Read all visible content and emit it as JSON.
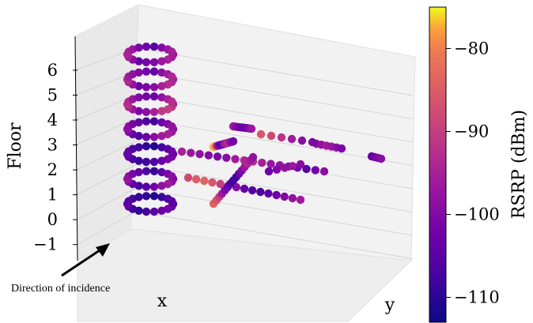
{
  "chart_data": {
    "type": "scatter",
    "projection": "3d",
    "zlabel": "Floor",
    "xlabel": "x",
    "ylabel": "y",
    "z_ticks": [
      "−1",
      "0",
      "1",
      "2",
      "3",
      "4",
      "5",
      "6"
    ],
    "z_tick_values": [
      -1,
      0,
      1,
      2,
      3,
      4,
      5,
      6
    ],
    "zlim": [
      -1.2,
      6.6
    ],
    "grid": true,
    "annotation": "Direction of incidence",
    "colorbar": {
      "label": "RSRP (dBm)",
      "colormap": "plasma",
      "range": [
        -113,
        -75
      ],
      "ticks": [
        "−80",
        "−90",
        "−100",
        "−110"
      ],
      "tick_values": [
        -80,
        -90,
        -100,
        -110
      ]
    },
    "series": [
      {
        "description": "vertical stack of ring-shaped measurement paths",
        "rings": [
          {
            "floor": 6,
            "values": [
              -98,
              -96,
              -95,
              -97,
              -100,
              -102,
              -104,
              -99,
              -96,
              -94,
              -95,
              -97,
              -101,
              -103,
              -105,
              -100,
              -97,
              -95
            ]
          },
          {
            "floor": 5,
            "values": [
              -97,
              -94,
              -93,
              -95,
              -99,
              -101,
              -103,
              -98,
              -95,
              -93,
              -96,
              -98,
              -100,
              -102,
              -104,
              -99,
              -96,
              -94
            ]
          },
          {
            "floor": 4,
            "values": [
              -96,
              -92,
              -90,
              -91,
              -95,
              -99,
              -101,
              -97,
              -94,
              -92,
              -93,
              -97,
              -100,
              -102,
              -103,
              -98,
              -95,
              -93
            ]
          },
          {
            "floor": 3,
            "values": [
              -100,
              -97,
              -95,
              -96,
              -99,
              -103,
              -106,
              -104,
              -100,
              -98,
              -99,
              -101,
              -104,
              -106,
              -108,
              -103,
              -100,
              -98
            ]
          },
          {
            "floor": 2,
            "values": [
              -104,
              -102,
              -101,
              -103,
              -106,
              -108,
              -109,
              -107,
              -105,
              -103,
              -104,
              -106,
              -108,
              -110,
              -111,
              -108,
              -105,
              -103
            ]
          },
          {
            "floor": 1,
            "values": [
              -103,
              -99,
              -96,
              -98,
              -102,
              -105,
              -107,
              -104,
              -100,
              -97,
              -98,
              -101,
              -104,
              -107,
              -109,
              -105,
              -101,
              -99
            ]
          },
          {
            "floor": 0,
            "values": [
              -106,
              -104,
              -102,
              -103,
              -105,
              -108,
              -110,
              -108,
              -106,
              -104,
              -105,
              -107,
              -109,
              -110,
              -111,
              -109,
              -107,
              -105
            ]
          }
        ]
      },
      {
        "description": "corridor measurement lines",
        "segments": [
          {
            "values": [
              -78,
              -76,
              -82,
              -90,
              -96,
              -100,
              -103,
              -105,
              -104,
              -101,
              -98,
              -95,
              -96,
              -94,
              -92,
              -97,
              -100,
              -99,
              -102
            ]
          },
          {
            "values": [
              -95,
              -97,
              -98,
              -100,
              -101,
              -99,
              -96,
              -94,
              -93,
              -95,
              -97,
              -98,
              -100,
              -103,
              -105,
              -102,
              -99
            ]
          },
          {
            "values": [
              -88,
              -85,
              -84,
              -86,
              -90,
              -95,
              -99,
              -104,
              -106,
              -107,
              -105,
              -103,
              -100,
              -98,
              -96
            ]
          },
          {
            "values": [
              -84,
              -86,
              -90,
              -96,
              -100,
              -103,
              -106,
              -108,
              -107,
              -104,
              -100,
              -97,
              -94,
              -96,
              -98
            ]
          },
          {
            "values": [
              -86,
              -88,
              -92,
              -96,
              -99,
              -101
            ]
          },
          {
            "values": [
              -96,
              -99,
              -101,
              -103,
              -104,
              -102,
              -100,
              -97
            ]
          },
          {
            "values": [
              -100,
              -98,
              -96,
              -97,
              -99,
              -101
            ]
          },
          {
            "values": [
              -103,
              -100,
              -98,
              -97,
              -99
            ]
          },
          {
            "values": [
              -104,
              -102,
              -100,
              -99
            ]
          }
        ]
      }
    ]
  }
}
